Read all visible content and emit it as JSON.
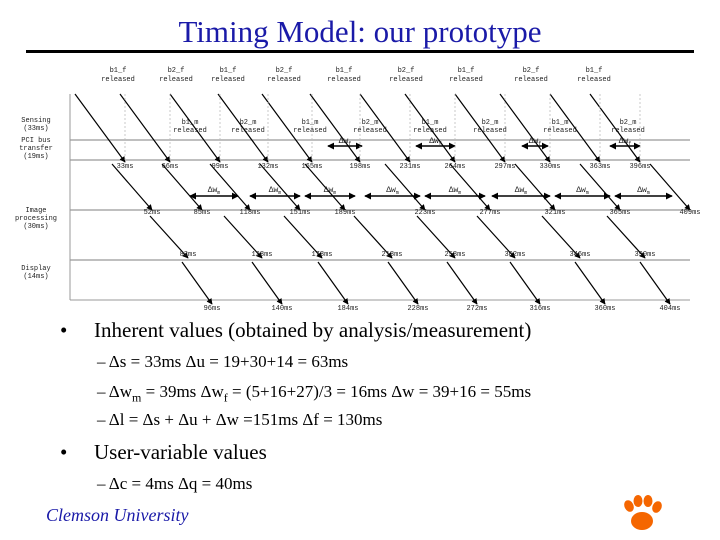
{
  "title": "Timing Model: our prototype",
  "diagram": {
    "row_labels": [
      [
        "Sensing",
        "(33ms)"
      ],
      [
        "PCI bus",
        "transfer",
        "(19ms)"
      ],
      [
        "Image",
        "processing",
        "(30ms)"
      ],
      [
        "Display",
        "(14ms)"
      ]
    ],
    "top_events": [
      [
        "b1_f",
        "released"
      ],
      [
        "b2_f",
        "released"
      ],
      [
        "b1_f",
        "released"
      ],
      [
        "b2_f",
        "released"
      ],
      [
        "b1_f",
        "released"
      ],
      [
        "b2_f",
        "released"
      ],
      [
        "b1_f",
        "released"
      ],
      [
        "b2_f",
        "released"
      ],
      [
        "b1_f",
        "released"
      ]
    ],
    "m_events": [
      [
        "b1_m",
        "released"
      ],
      [
        "b2_m",
        "released"
      ],
      [
        "b1_m",
        "released"
      ],
      [
        "b2_m",
        "released"
      ],
      [
        "b1_m",
        "released"
      ],
      [
        "b2_m",
        "released"
      ],
      [
        "b1_m",
        "released"
      ],
      [
        "b2_m",
        "released"
      ]
    ],
    "pci_times": [
      "33ms",
      "66ms",
      "99ms",
      "132ms",
      "165ms",
      "198ms",
      "231ms",
      "264ms",
      "297ms",
      "330ms",
      "363ms",
      "396ms"
    ],
    "proc_times": [
      "52ms",
      "85ms",
      "118ms",
      "151ms",
      "189ms",
      "223ms",
      "277ms",
      "321ms",
      "365ms",
      "409ms"
    ],
    "display_times": [
      "82ms",
      "128ms",
      "178ms",
      "218ms",
      "258ms",
      "302ms",
      "346ms",
      "390ms"
    ],
    "final_times": [
      "96ms",
      "140ms",
      "184ms",
      "228ms",
      "272ms",
      "316ms",
      "360ms",
      "404ms"
    ],
    "delta_wf_label": "Δw",
    "delta_wf_sub": "f",
    "delta_wm_label": "Δw",
    "delta_wm_sub": "m"
  },
  "bullets": {
    "inherent": "Inherent values (obtained by analysis/measurement)",
    "line1": "–  Δs = 33ms                Δu = 19+30+14 = 63ms",
    "line2_a": "–  Δw",
    "line2_sub": "m",
    "line2_b": " = 39ms   Δw",
    "line2_sub2": "f",
    "line2_c": " = (5+16+27)/3 = 16ms   Δw = 39+16 = 55ms",
    "line3": "–  Δl = Δs + Δu + Δw =151ms  Δf = 130ms",
    "user": "User-variable values",
    "line4": "–  Δc = 4ms  Δq = 40ms",
    "bullet_char": "•"
  },
  "footer": "Clemson University",
  "logo_color": "#f56600"
}
